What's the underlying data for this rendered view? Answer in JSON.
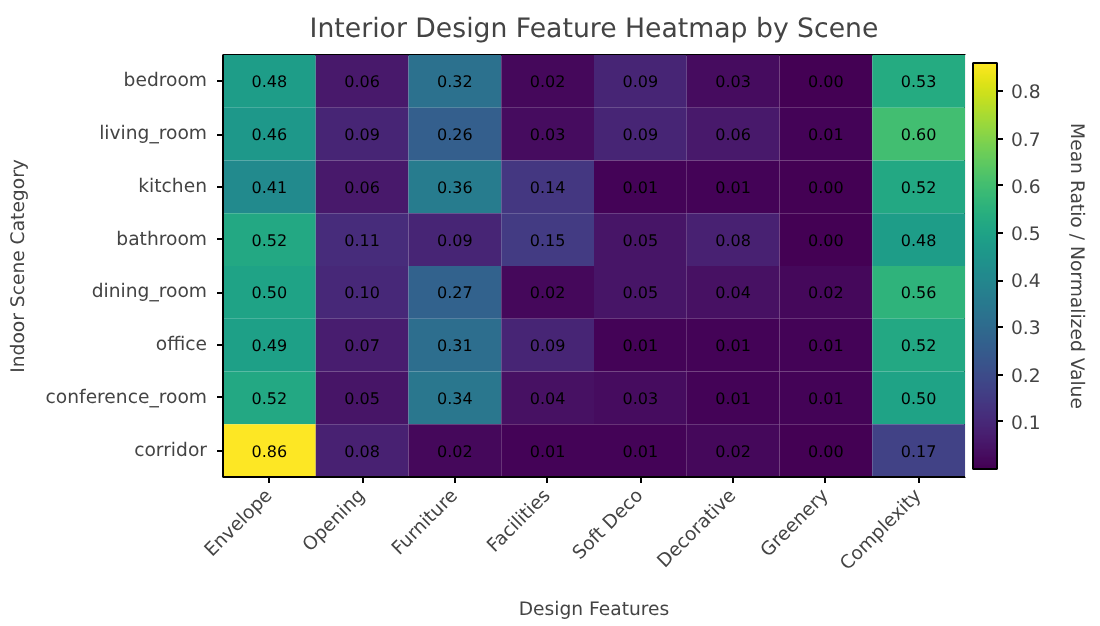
{
  "chart_data": {
    "type": "heatmap",
    "title": "Interior Design Feature Heatmap by Scene",
    "xlabel": "Design Features",
    "ylabel": "Indoor Scene Category",
    "clabel": "Mean Ratio / Normalized Value",
    "categories": [
      "Envelope",
      "Opening",
      "Furniture",
      "Facilities",
      "Soft Deco",
      "Decorative",
      "Greenery",
      "Complexity"
    ],
    "y_categories": [
      "bedroom",
      "living_room",
      "kitchen",
      "bathroom",
      "dining_room",
      "office",
      "conference_room",
      "corridor"
    ],
    "cells": [
      [
        0.48,
        0.06,
        0.32,
        0.02,
        0.09,
        0.03,
        0.0,
        0.53
      ],
      [
        0.46,
        0.09,
        0.26,
        0.03,
        0.09,
        0.06,
        0.01,
        0.6
      ],
      [
        0.41,
        0.06,
        0.36,
        0.14,
        0.01,
        0.01,
        0.0,
        0.52
      ],
      [
        0.52,
        0.11,
        0.09,
        0.15,
        0.05,
        0.08,
        0.0,
        0.48
      ],
      [
        0.5,
        0.1,
        0.27,
        0.02,
        0.05,
        0.04,
        0.02,
        0.56
      ],
      [
        0.49,
        0.07,
        0.31,
        0.09,
        0.01,
        0.01,
        0.01,
        0.52
      ],
      [
        0.52,
        0.05,
        0.34,
        0.04,
        0.03,
        0.01,
        0.01,
        0.5
      ],
      [
        0.86,
        0.08,
        0.02,
        0.01,
        0.01,
        0.02,
        0.0,
        0.17
      ]
    ],
    "cell_labels": [
      [
        "0.48",
        "0.06",
        "0.32",
        "0.02",
        "0.09",
        "0.03",
        "0.00",
        "0.53"
      ],
      [
        "0.46",
        "0.09",
        "0.26",
        "0.03",
        "0.09",
        "0.06",
        "0.01",
        "0.60"
      ],
      [
        "0.41",
        "0.06",
        "0.36",
        "0.14",
        "0.01",
        "0.01",
        "0.00",
        "0.52"
      ],
      [
        "0.52",
        "0.11",
        "0.09",
        "0.15",
        "0.05",
        "0.08",
        "0.00",
        "0.48"
      ],
      [
        "0.50",
        "0.10",
        "0.27",
        "0.02",
        "0.05",
        "0.04",
        "0.02",
        "0.56"
      ],
      [
        "0.49",
        "0.07",
        "0.31",
        "0.09",
        "0.01",
        "0.01",
        "0.01",
        "0.52"
      ],
      [
        "0.52",
        "0.05",
        "0.34",
        "0.04",
        "0.03",
        "0.01",
        "0.01",
        "0.50"
      ],
      [
        "0.86",
        "0.08",
        "0.02",
        "0.01",
        "0.01",
        "0.02",
        "0.00",
        "0.17"
      ]
    ],
    "clim": [
      0.0,
      0.86
    ],
    "cticks": [
      0.1,
      0.2,
      0.3,
      0.4,
      0.5,
      0.6,
      0.7,
      0.8
    ]
  }
}
